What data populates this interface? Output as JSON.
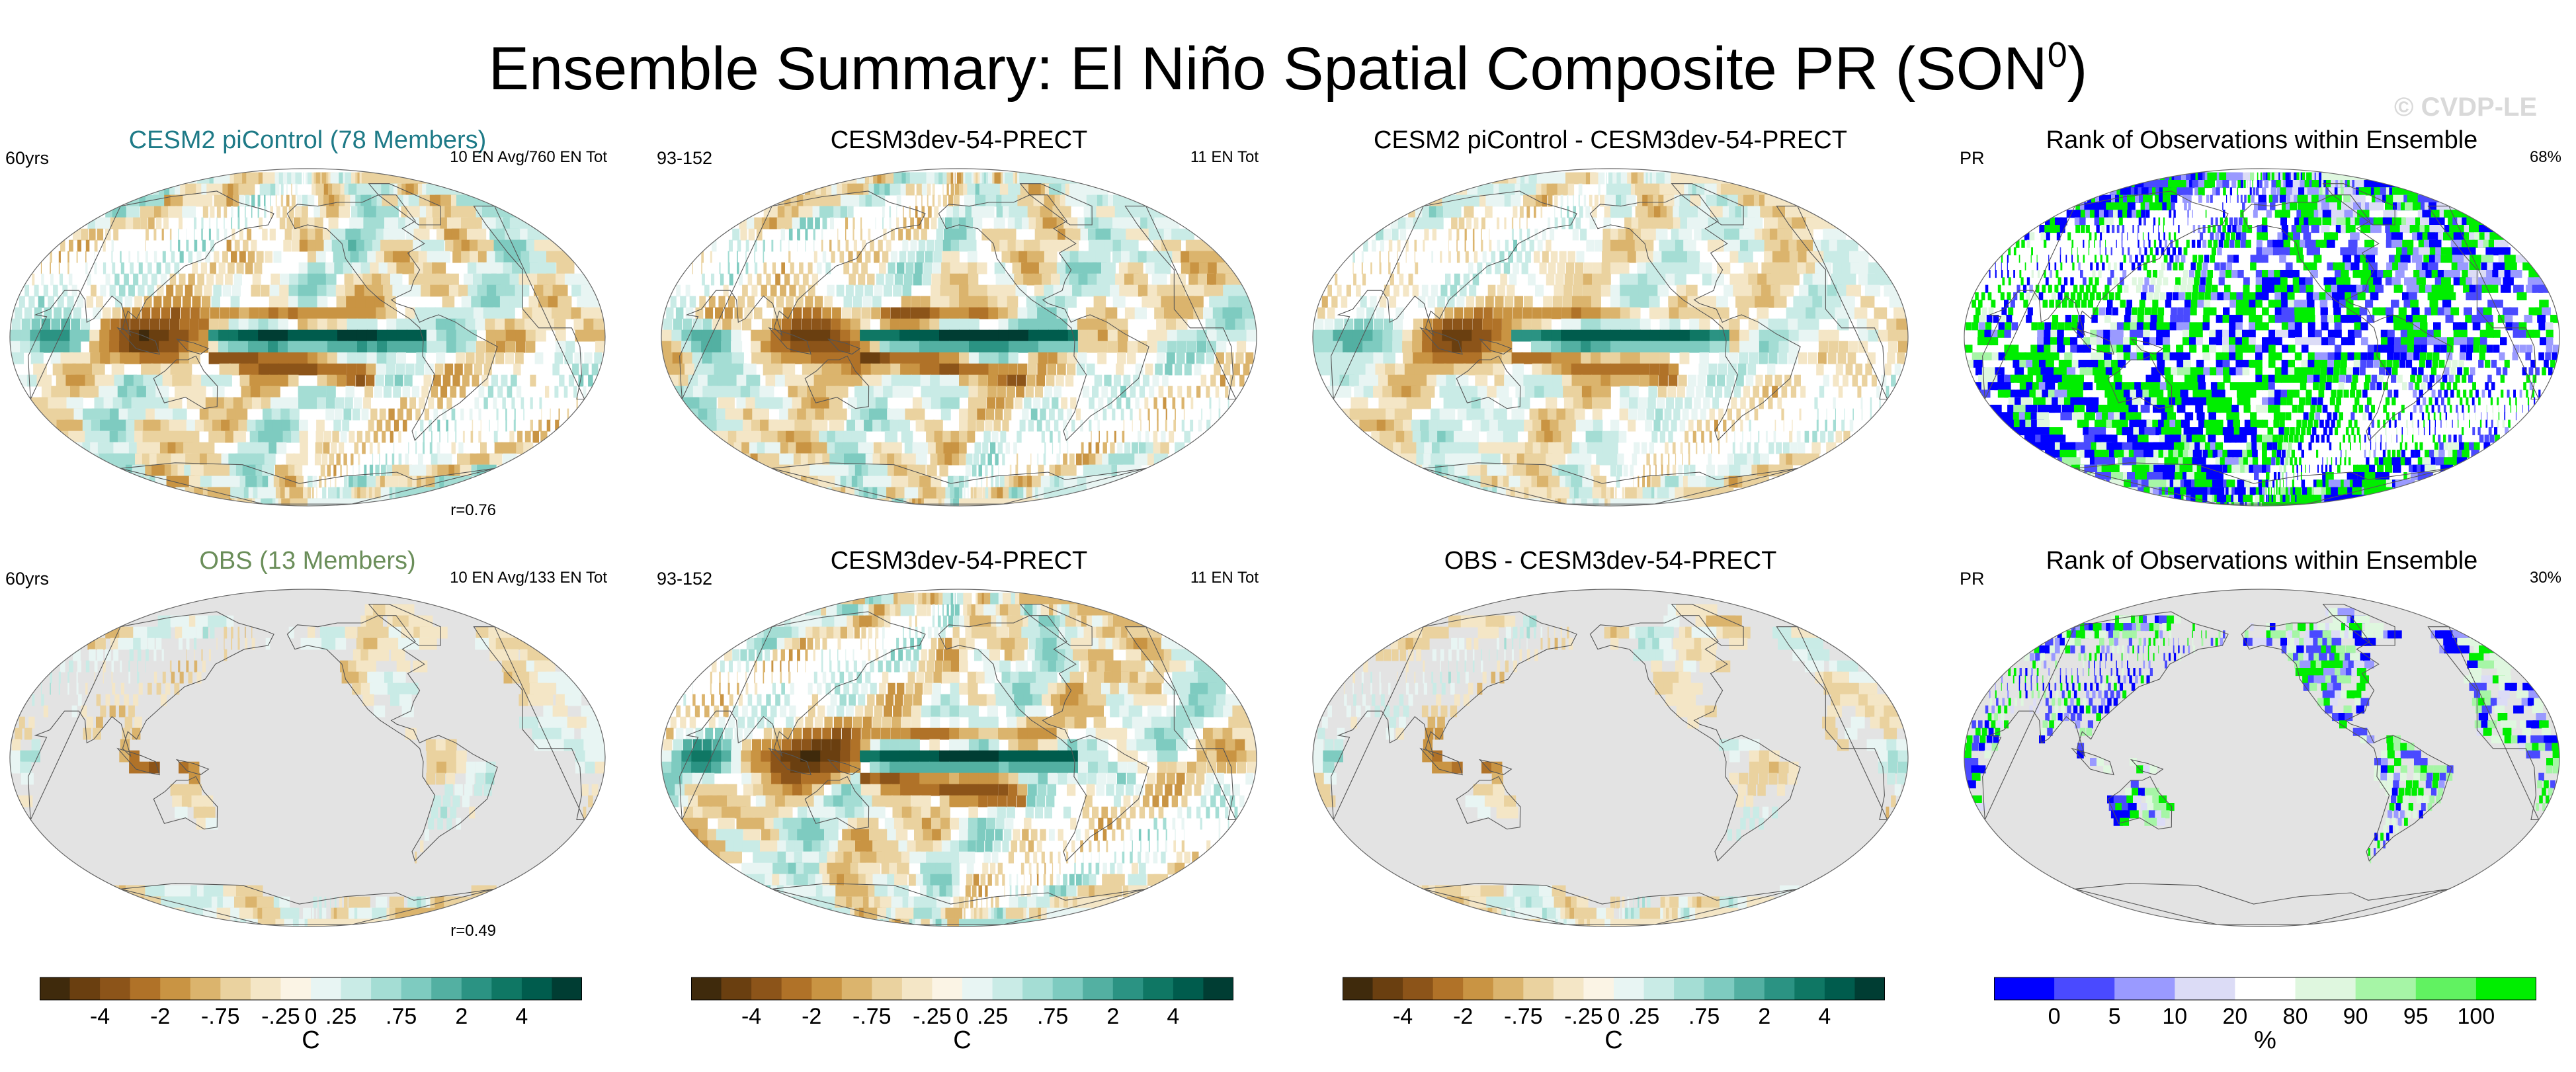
{
  "title": "Ensemble Summary: El Niño Spatial Composite PR (SON",
  "title_sup": "0",
  "title_close": ")",
  "watermark": "© CVDP-LE",
  "panels": [
    {
      "title": "CESM2 piControl (78 Members)",
      "title_color": "#1e7a87",
      "left_label": "60yrs",
      "right_label": "10 EN Avg/760 EN Tot",
      "corr": "r=0.76",
      "kind": "div",
      "mask": false,
      "strength": 1.0
    },
    {
      "title": "CESM3dev-54-PRECT",
      "title_color": "#000000",
      "left_label": "93-152",
      "right_label": "11 EN Tot",
      "corr": "",
      "kind": "div",
      "mask": false,
      "strength": 1.0
    },
    {
      "title": "CESM2 piControl - CESM3dev-54-PRECT",
      "title_color": "#000000",
      "left_label": "",
      "right_label": "",
      "corr": "",
      "kind": "div",
      "mask": false,
      "strength": 0.75
    },
    {
      "title": "Rank of Observations within Ensemble",
      "title_color": "#000000",
      "left_label": "PR",
      "right_label": "68%",
      "corr": "",
      "kind": "rank",
      "mask": false,
      "strength": 1.0
    },
    {
      "title": "OBS (13 Members)",
      "title_color": "#6b8e5a",
      "left_label": "60yrs",
      "right_label": "10 EN Avg/133 EN Tot",
      "corr": "r=0.49",
      "kind": "div",
      "mask": true,
      "strength": 0.6
    },
    {
      "title": "CESM3dev-54-PRECT",
      "title_color": "#000000",
      "left_label": "93-152",
      "right_label": "11 EN Tot",
      "corr": "",
      "kind": "div",
      "mask": false,
      "strength": 1.0
    },
    {
      "title": "OBS - CESM3dev-54-PRECT",
      "title_color": "#000000",
      "left_label": "",
      "right_label": "",
      "corr": "",
      "kind": "div",
      "mask": true,
      "strength": 0.6
    },
    {
      "title": "Rank of Observations within Ensemble",
      "title_color": "#000000",
      "left_label": "PR",
      "right_label": "30%",
      "corr": "",
      "kind": "rank",
      "mask": true,
      "strength": 1.0
    }
  ],
  "colorbars": [
    {
      "labels": [
        "-4",
        "-2",
        "-.75",
        "-.25",
        "0",
        ".25",
        ".75",
        "2",
        "4"
      ],
      "unit": "C"
    },
    {
      "labels": [
        "-4",
        "-2",
        "-.75",
        "-.25",
        "0",
        ".25",
        ".75",
        "2",
        "4"
      ],
      "unit": "C"
    },
    {
      "labels": [
        "-4",
        "-2",
        "-.75",
        "-.25",
        "0",
        ".25",
        ".75",
        "2",
        "4"
      ],
      "unit": "C"
    },
    {
      "labels": [
        "0",
        "5",
        "10",
        "20",
        "80",
        "90",
        "95",
        "100"
      ],
      "unit": "%"
    }
  ],
  "colors": {
    "div": [
      "#3f2a0c",
      "#6a3f10",
      "#8c5419",
      "#b07228",
      "#c99443",
      "#dbb46d",
      "#ead29f",
      "#f4e6c6",
      "#fbf4e5",
      "#e8f5f3",
      "#c9ebe6",
      "#a4ddd4",
      "#7ecbc0",
      "#53b0a2",
      "#2b9383",
      "#0f7764",
      "#005c4d",
      "#003d33"
    ],
    "rank": [
      "#0000ff",
      "#4a4aff",
      "#9a9aff",
      "#dcdcf6",
      "#ffffff",
      "#dff7df",
      "#a6f5a6",
      "#61f261",
      "#00ee00"
    ],
    "mask": "#e3e3e3"
  },
  "chart_data": {
    "type": "heatmap",
    "title": "Ensemble Summary: El Niño Spatial Composite PR (SON0)",
    "variable": "PR",
    "season": "SON0",
    "diverging_scale": {
      "ticks": [
        "-4",
        "-2",
        "-.75",
        "-.25",
        "0",
        ".25",
        ".75",
        "2",
        "4"
      ],
      "unit": "C",
      "n_colors": 18
    },
    "rank_scale": {
      "ticks": [
        "0",
        "5",
        "10",
        "20",
        "80",
        "90",
        "95",
        "100"
      ],
      "unit": "%",
      "n_colors": 9
    },
    "panels": [
      {
        "name": "CESM2 piControl (78 Members)",
        "years": "60yrs",
        "events": "10 EN Avg/760 EN Tot",
        "pattern_corr": 0.76
      },
      {
        "name": "CESM3dev-54-PRECT",
        "years": "93-152",
        "events": "11 EN Tot"
      },
      {
        "name": "CESM2 piControl - CESM3dev-54-PRECT"
      },
      {
        "name": "Rank of Observations within Ensemble",
        "variable": "PR",
        "percent": 68
      },
      {
        "name": "OBS (13 Members)",
        "years": "60yrs",
        "events": "10 EN Avg/133 EN Tot",
        "pattern_corr": 0.49
      },
      {
        "name": "CESM3dev-54-PRECT",
        "years": "93-152",
        "events": "11 EN Tot"
      },
      {
        "name": "OBS - CESM3dev-54-PRECT"
      },
      {
        "name": "Rank of Observations within Ensemble",
        "variable": "PR",
        "percent": 30
      }
    ]
  }
}
